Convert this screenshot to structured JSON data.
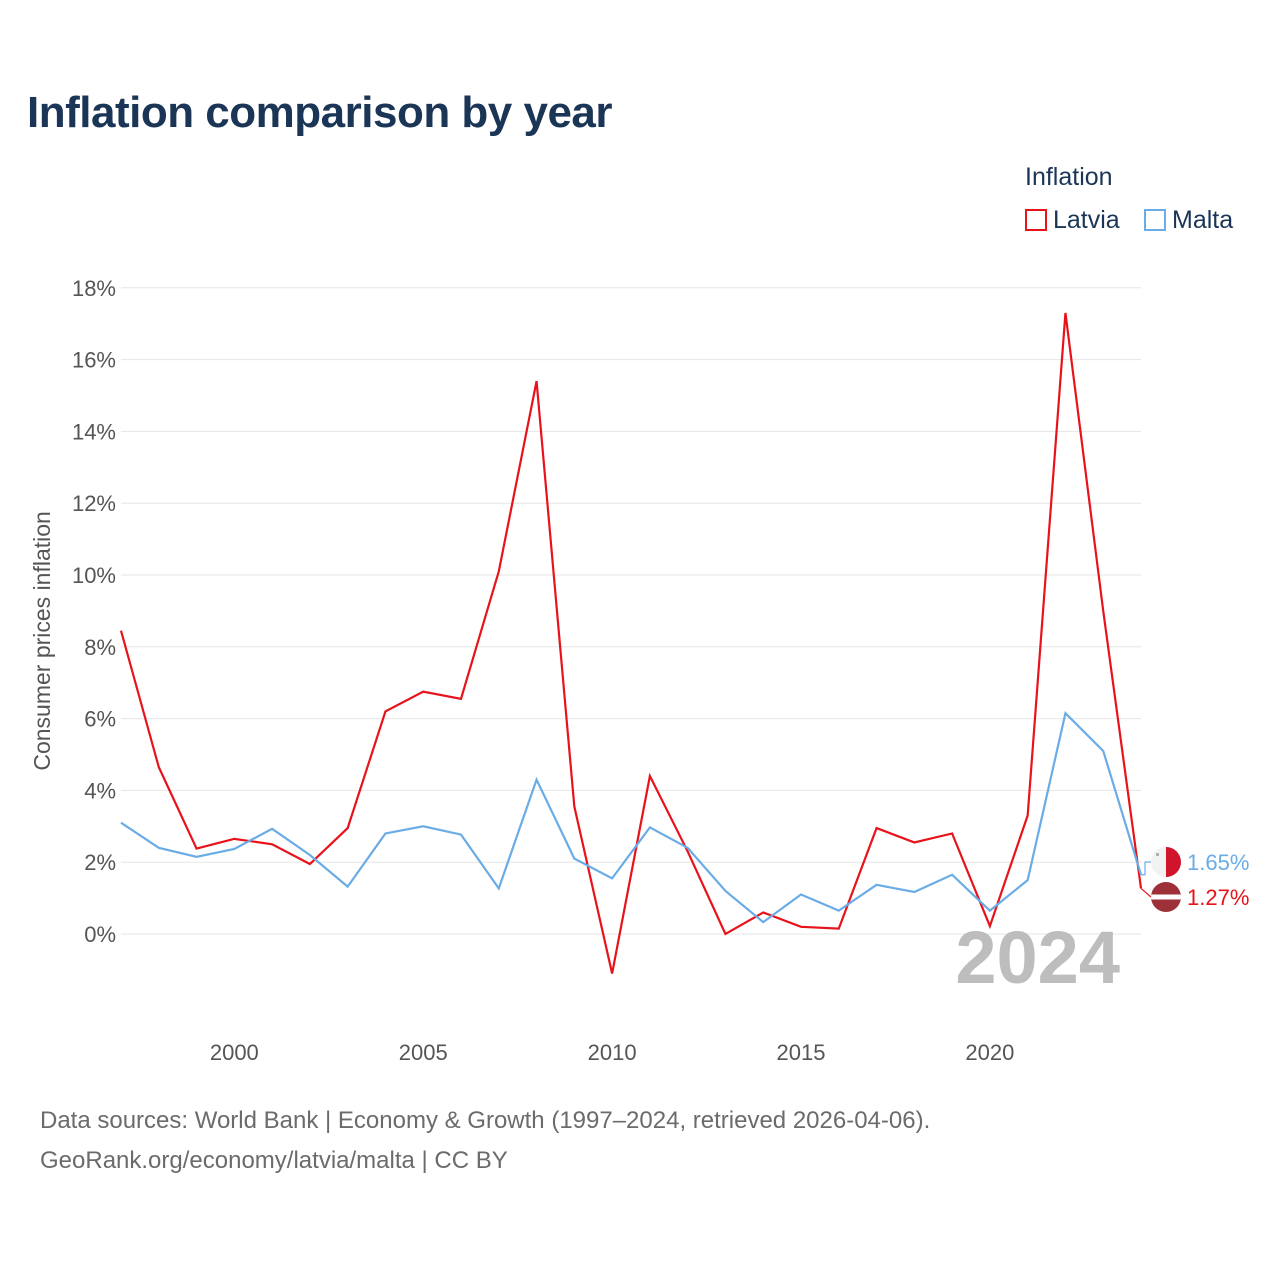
{
  "title": "Inflation comparison by year",
  "legend": {
    "title": "Inflation",
    "items": [
      {
        "label": "Latvia",
        "color": "#e8131a"
      },
      {
        "label": "Malta",
        "color": "#6aace5"
      }
    ]
  },
  "chart_data": {
    "type": "line",
    "ylabel": "Consumer prices inflation",
    "ylim": [
      -2.0,
      18
    ],
    "xlim": [
      1997,
      2024
    ],
    "yticks": [
      0,
      2,
      4,
      6,
      8,
      10,
      12,
      14,
      16,
      18
    ],
    "ytick_labels": [
      "0%",
      "2%",
      "4%",
      "6%",
      "8%",
      "10%",
      "12%",
      "14%",
      "16%",
      "18%"
    ],
    "xticks": [
      2000,
      2005,
      2010,
      2015,
      2020
    ],
    "xtick_labels": [
      "2000",
      "2005",
      "2010",
      "2015",
      "2020"
    ],
    "grid": true,
    "year_watermark": "2024",
    "x": [
      1997,
      1998,
      1999,
      2000,
      2001,
      2002,
      2003,
      2004,
      2005,
      2006,
      2007,
      2008,
      2009,
      2010,
      2011,
      2012,
      2013,
      2014,
      2015,
      2016,
      2017,
      2018,
      2019,
      2020,
      2021,
      2022,
      2023,
      2024
    ],
    "series": [
      {
        "name": "Latvia",
        "color": "#e8131a",
        "end_label": "1.27%",
        "values": [
          8.45,
          4.65,
          2.38,
          2.65,
          2.5,
          1.95,
          2.95,
          6.2,
          6.75,
          6.55,
          10.1,
          15.4,
          3.55,
          -1.1,
          4.4,
          2.3,
          0.0,
          0.6,
          0.2,
          0.15,
          2.95,
          2.55,
          2.8,
          0.22,
          3.3,
          17.3,
          9.0,
          1.27
        ]
      },
      {
        "name": "Malta",
        "color": "#6aace5",
        "end_label": "1.65%",
        "values": [
          3.1,
          2.4,
          2.15,
          2.37,
          2.93,
          2.2,
          1.32,
          2.8,
          3.0,
          2.77,
          1.27,
          4.3,
          2.1,
          1.55,
          2.97,
          2.4,
          1.2,
          0.33,
          1.1,
          0.65,
          1.37,
          1.17,
          1.65,
          0.65,
          1.5,
          6.15,
          5.1,
          1.65
        ]
      }
    ]
  },
  "sources": {
    "line1": "Data sources: World Bank | Economy & Growth (1997–2024, retrieved 2026-04-06).",
    "line2": "GeoRank.org/economy/latvia/malta | CC BY"
  }
}
